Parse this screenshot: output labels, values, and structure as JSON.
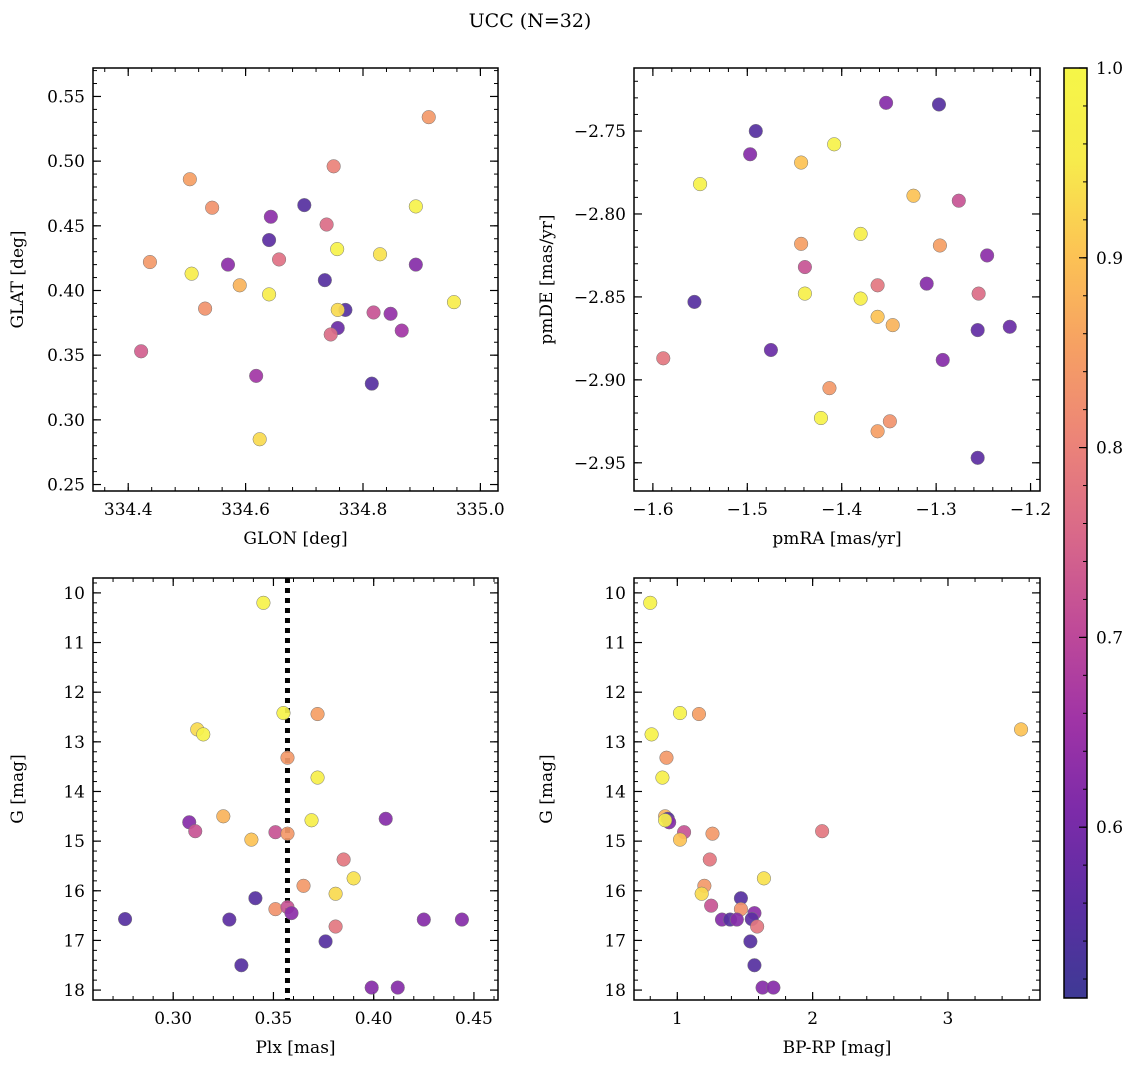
{
  "figure": {
    "title": "UCC (N=32)"
  },
  "colorbar": {
    "range": [
      0.51,
      1.0
    ],
    "ticks": [
      0.6,
      0.7,
      0.8,
      0.9,
      1.0
    ],
    "tick_labels": [
      "0.6",
      "0.7",
      "0.8",
      "0.9",
      "1.0"
    ],
    "colormap": "plasma",
    "colors": [
      "#3e3a95",
      "#5b2ea2",
      "#7c2ba9",
      "#a034a6",
      "#c04b98",
      "#d96989",
      "#ec8478",
      "#f6a063",
      "#fcc354",
      "#f7eb4c",
      "#f5f648"
    ]
  },
  "chart_data": [
    {
      "type": "scatter",
      "xlabel": "GLON [deg]",
      "ylabel": "GLAT [deg]",
      "xlim": [
        334.34,
        335.03
      ],
      "ylim": [
        0.245,
        0.572
      ],
      "xticks": [
        334.4,
        334.6,
        334.8,
        335.0
      ],
      "xtick_labels": [
        "334.4",
        "334.6",
        "334.8",
        "335.0"
      ],
      "yticks": [
        0.25,
        0.3,
        0.35,
        0.4,
        0.45,
        0.5,
        0.55
      ],
      "ytick_labels": [
        "0.25",
        "0.30",
        "0.35",
        "0.40",
        "0.45",
        "0.50",
        "0.55"
      ],
      "points": [
        {
          "x": 334.912,
          "y": 0.534,
          "c": 0.84
        },
        {
          "x": 334.75,
          "y": 0.496,
          "c": 0.8
        },
        {
          "x": 334.505,
          "y": 0.486,
          "c": 0.85
        },
        {
          "x": 334.7,
          "y": 0.466,
          "c": 0.55
        },
        {
          "x": 334.89,
          "y": 0.465,
          "c": 0.98
        },
        {
          "x": 334.543,
          "y": 0.464,
          "c": 0.83
        },
        {
          "x": 334.643,
          "y": 0.457,
          "c": 0.63
        },
        {
          "x": 334.738,
          "y": 0.451,
          "c": 0.76
        },
        {
          "x": 334.64,
          "y": 0.439,
          "c": 0.56
        },
        {
          "x": 334.756,
          "y": 0.432,
          "c": 0.98
        },
        {
          "x": 334.829,
          "y": 0.428,
          "c": 0.94
        },
        {
          "x": 334.657,
          "y": 0.424,
          "c": 0.77
        },
        {
          "x": 334.437,
          "y": 0.422,
          "c": 0.84
        },
        {
          "x": 334.57,
          "y": 0.42,
          "c": 0.63
        },
        {
          "x": 334.89,
          "y": 0.42,
          "c": 0.62
        },
        {
          "x": 334.508,
          "y": 0.413,
          "c": 0.96
        },
        {
          "x": 334.735,
          "y": 0.408,
          "c": 0.55
        },
        {
          "x": 334.59,
          "y": 0.404,
          "c": 0.88
        },
        {
          "x": 334.64,
          "y": 0.397,
          "c": 0.96
        },
        {
          "x": 334.955,
          "y": 0.391,
          "c": 0.96
        },
        {
          "x": 334.531,
          "y": 0.386,
          "c": 0.83
        },
        {
          "x": 334.77,
          "y": 0.385,
          "c": 0.55
        },
        {
          "x": 334.757,
          "y": 0.385,
          "c": 0.93
        },
        {
          "x": 334.818,
          "y": 0.383,
          "c": 0.72
        },
        {
          "x": 334.847,
          "y": 0.382,
          "c": 0.64
        },
        {
          "x": 334.757,
          "y": 0.371,
          "c": 0.58
        },
        {
          "x": 334.866,
          "y": 0.369,
          "c": 0.66
        },
        {
          "x": 334.745,
          "y": 0.366,
          "c": 0.76
        },
        {
          "x": 334.422,
          "y": 0.353,
          "c": 0.74
        },
        {
          "x": 334.618,
          "y": 0.334,
          "c": 0.66
        },
        {
          "x": 334.815,
          "y": 0.328,
          "c": 0.55
        },
        {
          "x": 334.624,
          "y": 0.285,
          "c": 0.93
        }
      ]
    },
    {
      "type": "scatter",
      "xlabel": "pmRA [mas/yr]",
      "ylabel": "pmDE [mas/yr]",
      "xlim": [
        -1.62,
        -1.19
      ],
      "ylim": [
        -2.967,
        -2.712
      ],
      "xticks": [
        -1.6,
        -1.5,
        -1.4,
        -1.3,
        -1.2
      ],
      "xtick_labels": [
        "−1.6",
        "−1.5",
        "−1.4",
        "−1.3",
        "−1.2"
      ],
      "yticks": [
        -2.95,
        -2.9,
        -2.85,
        -2.8,
        -2.75
      ],
      "ytick_labels": [
        "−2.95",
        "−2.90",
        "−2.85",
        "−2.80",
        "−2.75"
      ],
      "points": [
        {
          "x": -1.353,
          "y": -2.733,
          "c": 0.62
        },
        {
          "x": -1.297,
          "y": -2.734,
          "c": 0.55
        },
        {
          "x": -1.491,
          "y": -2.75,
          "c": 0.55
        },
        {
          "x": -1.408,
          "y": -2.758,
          "c": 0.98
        },
        {
          "x": -1.497,
          "y": -2.764,
          "c": 0.62
        },
        {
          "x": -1.443,
          "y": -2.769,
          "c": 0.9
        },
        {
          "x": -1.55,
          "y": -2.782,
          "c": 0.98
        },
        {
          "x": -1.324,
          "y": -2.789,
          "c": 0.9
        },
        {
          "x": -1.276,
          "y": -2.792,
          "c": 0.72
        },
        {
          "x": -1.38,
          "y": -2.812,
          "c": 0.97
        },
        {
          "x": -1.443,
          "y": -2.818,
          "c": 0.85
        },
        {
          "x": -1.296,
          "y": -2.819,
          "c": 0.85
        },
        {
          "x": -1.246,
          "y": -2.825,
          "c": 0.63
        },
        {
          "x": -1.439,
          "y": -2.832,
          "c": 0.72
        },
        {
          "x": -1.31,
          "y": -2.842,
          "c": 0.62
        },
        {
          "x": -1.362,
          "y": -2.843,
          "c": 0.78
        },
        {
          "x": -1.439,
          "y": -2.848,
          "c": 0.97
        },
        {
          "x": -1.255,
          "y": -2.848,
          "c": 0.76
        },
        {
          "x": -1.38,
          "y": -2.851,
          "c": 0.97
        },
        {
          "x": -1.556,
          "y": -2.853,
          "c": 0.55
        },
        {
          "x": -1.362,
          "y": -2.862,
          "c": 0.9
        },
        {
          "x": -1.346,
          "y": -2.867,
          "c": 0.88
        },
        {
          "x": -1.222,
          "y": -2.868,
          "c": 0.58
        },
        {
          "x": -1.256,
          "y": -2.87,
          "c": 0.57
        },
        {
          "x": -1.475,
          "y": -2.882,
          "c": 0.58
        },
        {
          "x": -1.589,
          "y": -2.887,
          "c": 0.78
        },
        {
          "x": -1.293,
          "y": -2.888,
          "c": 0.62
        },
        {
          "x": -1.413,
          "y": -2.905,
          "c": 0.84
        },
        {
          "x": -1.422,
          "y": -2.923,
          "c": 0.98
        },
        {
          "x": -1.349,
          "y": -2.925,
          "c": 0.83
        },
        {
          "x": -1.362,
          "y": -2.931,
          "c": 0.85
        },
        {
          "x": -1.256,
          "y": -2.947,
          "c": 0.56
        }
      ]
    },
    {
      "type": "scatter",
      "xlabel": "Plx [mas]",
      "ylabel": "G [mag]",
      "y_inverted": true,
      "xlim": [
        0.26,
        0.462
      ],
      "ylim": [
        9.7,
        18.2
      ],
      "xticks": [
        0.3,
        0.35,
        0.4,
        0.45
      ],
      "xtick_labels": [
        "0.30",
        "0.35",
        "0.40",
        "0.45"
      ],
      "yticks": [
        10,
        11,
        12,
        13,
        14,
        15,
        16,
        17,
        18
      ],
      "ytick_labels": [
        "10",
        "11",
        "12",
        "13",
        "14",
        "15",
        "16",
        "17",
        "18"
      ],
      "vline": {
        "x": 0.357,
        "style": "dotted"
      },
      "points": [
        {
          "x": 0.345,
          "y": 10.2,
          "c": 0.98
        },
        {
          "x": 0.355,
          "y": 12.42,
          "c": 0.98
        },
        {
          "x": 0.372,
          "y": 12.44,
          "c": 0.85
        },
        {
          "x": 0.312,
          "y": 12.75,
          "c": 0.93
        },
        {
          "x": 0.315,
          "y": 12.85,
          "c": 0.98
        },
        {
          "x": 0.357,
          "y": 13.32,
          "c": 0.84
        },
        {
          "x": 0.372,
          "y": 13.72,
          "c": 0.97
        },
        {
          "x": 0.325,
          "y": 14.5,
          "c": 0.88
        },
        {
          "x": 0.369,
          "y": 14.58,
          "c": 0.97
        },
        {
          "x": 0.406,
          "y": 14.55,
          "c": 0.62
        },
        {
          "x": 0.308,
          "y": 14.62,
          "c": 0.62
        },
        {
          "x": 0.311,
          "y": 14.8,
          "c": 0.72
        },
        {
          "x": 0.351,
          "y": 14.82,
          "c": 0.72
        },
        {
          "x": 0.357,
          "y": 14.85,
          "c": 0.84
        },
        {
          "x": 0.339,
          "y": 14.97,
          "c": 0.9
        },
        {
          "x": 0.385,
          "y": 15.37,
          "c": 0.78
        },
        {
          "x": 0.39,
          "y": 15.75,
          "c": 0.94
        },
        {
          "x": 0.365,
          "y": 15.9,
          "c": 0.84
        },
        {
          "x": 0.381,
          "y": 16.06,
          "c": 0.93
        },
        {
          "x": 0.341,
          "y": 16.15,
          "c": 0.55
        },
        {
          "x": 0.351,
          "y": 16.37,
          "c": 0.83
        },
        {
          "x": 0.357,
          "y": 16.33,
          "c": 0.72
        },
        {
          "x": 0.359,
          "y": 16.45,
          "c": 0.63
        },
        {
          "x": 0.276,
          "y": 16.57,
          "c": 0.55
        },
        {
          "x": 0.328,
          "y": 16.58,
          "c": 0.56
        },
        {
          "x": 0.425,
          "y": 16.58,
          "c": 0.62
        },
        {
          "x": 0.444,
          "y": 16.58,
          "c": 0.62
        },
        {
          "x": 0.381,
          "y": 16.72,
          "c": 0.78
        },
        {
          "x": 0.376,
          "y": 17.02,
          "c": 0.55
        },
        {
          "x": 0.334,
          "y": 17.5,
          "c": 0.55
        },
        {
          "x": 0.399,
          "y": 17.95,
          "c": 0.62
        },
        {
          "x": 0.412,
          "y": 17.95,
          "c": 0.62
        }
      ]
    },
    {
      "type": "scatter",
      "xlabel": "BP-RP [mag]",
      "ylabel": "G [mag]",
      "y_inverted": true,
      "xlim": [
        0.68,
        3.68
      ],
      "ylim": [
        9.7,
        18.2
      ],
      "xticks": [
        1,
        2,
        3
      ],
      "xtick_labels": [
        "1",
        "2",
        "3"
      ],
      "yticks": [
        10,
        11,
        12,
        13,
        14,
        15,
        16,
        17,
        18
      ],
      "ytick_labels": [
        "10",
        "11",
        "12",
        "13",
        "14",
        "15",
        "16",
        "17",
        "18"
      ],
      "points": [
        {
          "x": 0.8,
          "y": 10.2,
          "c": 0.98
        },
        {
          "x": 1.02,
          "y": 12.42,
          "c": 0.98
        },
        {
          "x": 1.16,
          "y": 12.44,
          "c": 0.85
        },
        {
          "x": 3.54,
          "y": 12.75,
          "c": 0.9
        },
        {
          "x": 0.81,
          "y": 12.85,
          "c": 0.98
        },
        {
          "x": 0.92,
          "y": 13.32,
          "c": 0.84
        },
        {
          "x": 0.89,
          "y": 13.72,
          "c": 0.97
        },
        {
          "x": 0.91,
          "y": 14.5,
          "c": 0.88
        },
        {
          "x": 0.93,
          "y": 14.55,
          "c": 0.55
        },
        {
          "x": 0.94,
          "y": 14.62,
          "c": 0.62
        },
        {
          "x": 0.91,
          "y": 14.58,
          "c": 0.97
        },
        {
          "x": 2.07,
          "y": 14.8,
          "c": 0.78
        },
        {
          "x": 1.05,
          "y": 14.82,
          "c": 0.72
        },
        {
          "x": 1.26,
          "y": 14.85,
          "c": 0.84
        },
        {
          "x": 1.02,
          "y": 14.97,
          "c": 0.9
        },
        {
          "x": 1.24,
          "y": 15.37,
          "c": 0.78
        },
        {
          "x": 1.64,
          "y": 15.75,
          "c": 0.94
        },
        {
          "x": 1.2,
          "y": 15.9,
          "c": 0.84
        },
        {
          "x": 1.18,
          "y": 16.06,
          "c": 0.93
        },
        {
          "x": 1.47,
          "y": 16.15,
          "c": 0.55
        },
        {
          "x": 1.25,
          "y": 16.3,
          "c": 0.72
        },
        {
          "x": 1.47,
          "y": 16.37,
          "c": 0.83
        },
        {
          "x": 1.57,
          "y": 16.45,
          "c": 0.63
        },
        {
          "x": 1.55,
          "y": 16.57,
          "c": 0.56
        },
        {
          "x": 1.33,
          "y": 16.58,
          "c": 0.62
        },
        {
          "x": 1.39,
          "y": 16.58,
          "c": 0.55
        },
        {
          "x": 1.44,
          "y": 16.58,
          "c": 0.62
        },
        {
          "x": 1.59,
          "y": 16.72,
          "c": 0.78
        },
        {
          "x": 1.54,
          "y": 17.02,
          "c": 0.55
        },
        {
          "x": 1.57,
          "y": 17.5,
          "c": 0.55
        },
        {
          "x": 1.63,
          "y": 17.95,
          "c": 0.62
        },
        {
          "x": 1.71,
          "y": 17.95,
          "c": 0.62
        }
      ]
    }
  ]
}
